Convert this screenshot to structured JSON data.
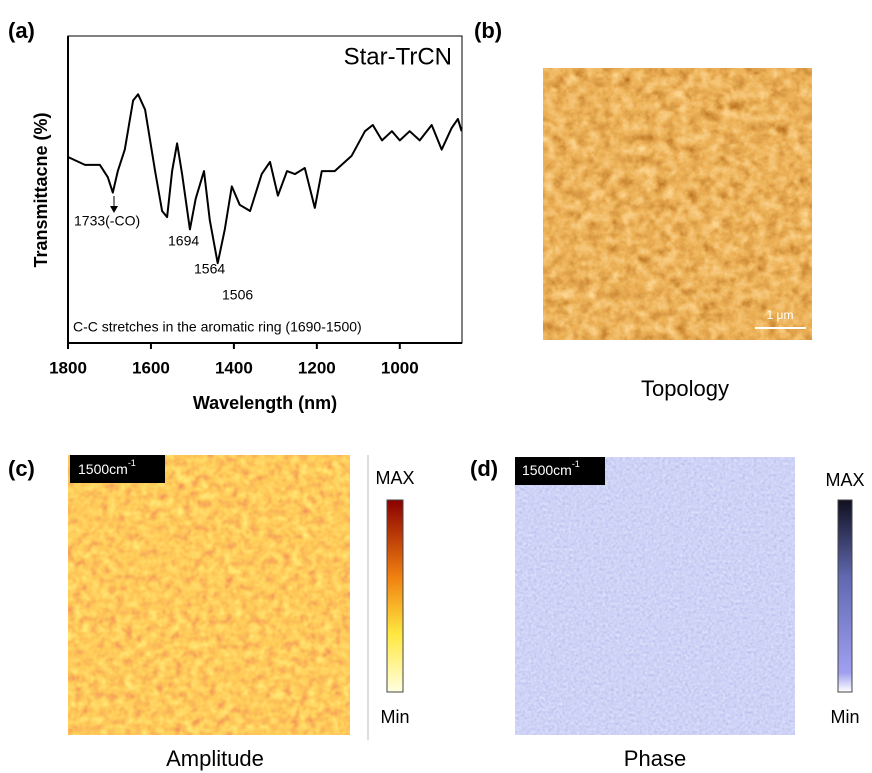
{
  "chart_data": {
    "type": "line",
    "title": "Star-TrCN",
    "x_label": "Wavelength (nm)",
    "y_label": "Transmittacne (%)",
    "x": [
      1800,
      1759,
      1723,
      1704,
      1692,
      1680,
      1663,
      1643,
      1631,
      1614,
      1590,
      1573,
      1561,
      1549,
      1537,
      1525,
      1506,
      1492,
      1472,
      1458,
      1439,
      1422,
      1405,
      1386,
      1361,
      1333,
      1313,
      1294,
      1272,
      1253,
      1229,
      1205,
      1188,
      1157,
      1116,
      1084,
      1065,
      1043,
      1019,
      1000,
      976,
      952,
      923,
      899,
      875,
      860,
      851
    ],
    "values": [
      60.6,
      58,
      58,
      54,
      49,
      56,
      63,
      79,
      81,
      76,
      56,
      43,
      41,
      56,
      65,
      55,
      37,
      47,
      56,
      40,
      26,
      37,
      51,
      45,
      43,
      55,
      59,
      48,
      56,
      55,
      57,
      44,
      56,
      56,
      61,
      69,
      71,
      66,
      69,
      66,
      69,
      66,
      71,
      63,
      70,
      73,
      69
    ],
    "color": "#000000",
    "xlim": [
      1800,
      850
    ],
    "ylim": [
      0,
      100
    ],
    "xticks": [
      1800,
      1600,
      1400,
      1200,
      1000
    ],
    "annotations": [
      "1733(-CO)",
      "1694",
      "1564",
      "1506",
      "C-C stretches in the aromatic ring (1690-1500)"
    ]
  },
  "panel_labels": [
    "(a)",
    "(b)",
    "(c)",
    "(d)"
  ],
  "topology": {
    "scale_bar": "1 μm",
    "caption": "Topology"
  },
  "amplitude": {
    "tag": "1500cm",
    "tag_sup": "-1",
    "max": "MAX",
    "min": "Min",
    "caption": "Amplitude"
  },
  "phase": {
    "tag": "1500cm",
    "tag_sup": "-1",
    "max": "MAX",
    "min": "Min",
    "caption": "Phase"
  }
}
